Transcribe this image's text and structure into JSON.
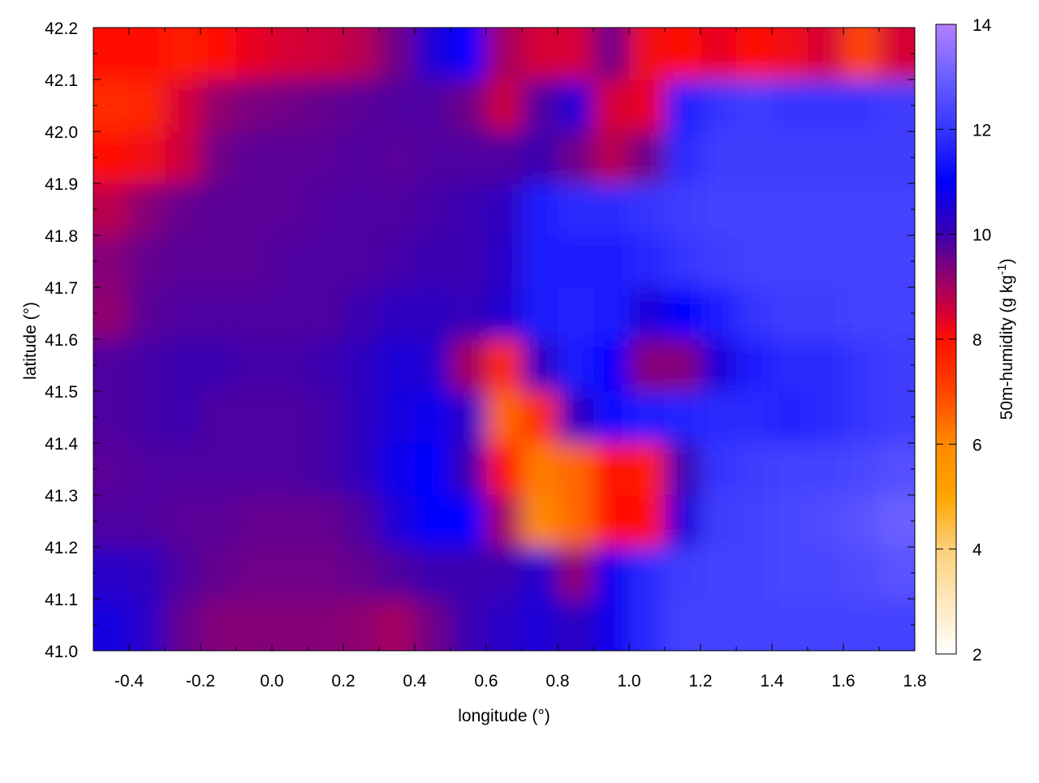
{
  "chart_data": {
    "type": "heatmap",
    "title": "",
    "xlabel": "longitude (°)",
    "ylabel": "latitude (°)",
    "colorbar_label": "50m-humidity (g kg",
    "colorbar_label_sup": "-1",
    "colorbar_label_end": ")",
    "xlim": [
      -0.5,
      1.8
    ],
    "ylim": [
      41.0,
      42.2
    ],
    "clim": [
      2,
      14
    ],
    "x_ticks": [
      "-0.4",
      "-0.2",
      "0.0",
      "0.2",
      "0.4",
      "0.6",
      "0.8",
      "1.0",
      "1.2",
      "1.4",
      "1.6",
      "1.8"
    ],
    "y_ticks": [
      "41.0",
      "41.1",
      "41.2",
      "41.3",
      "41.4",
      "41.5",
      "41.6",
      "41.7",
      "41.8",
      "41.9",
      "42.0",
      "42.1",
      "42.2"
    ],
    "c_ticks": [
      "2",
      "4",
      "6",
      "8",
      "10",
      "12",
      "14"
    ],
    "palette": [
      {
        "v": 2,
        "c": "#ffffff"
      },
      {
        "v": 4,
        "c": "#fcd07a"
      },
      {
        "v": 5,
        "c": "#ffa500"
      },
      {
        "v": 6,
        "c": "#ff8a00"
      },
      {
        "v": 7,
        "c": "#ff4400"
      },
      {
        "v": 8,
        "c": "#ff1000"
      },
      {
        "v": 8.4,
        "c": "#e0002c"
      },
      {
        "v": 9.2,
        "c": "#900070"
      },
      {
        "v": 10,
        "c": "#3a00b0"
      },
      {
        "v": 11,
        "c": "#0000ff"
      },
      {
        "v": 12,
        "c": "#3535ff"
      },
      {
        "v": 13,
        "c": "#6a60ff"
      },
      {
        "v": 14,
        "c": "#b380ff"
      }
    ],
    "grid_lon": [
      -0.45,
      -0.35,
      -0.25,
      -0.15,
      -0.05,
      0.05,
      0.15,
      0.25,
      0.35,
      0.45,
      0.55,
      0.65,
      0.75,
      0.85,
      0.95,
      1.05,
      1.15,
      1.25,
      1.35,
      1.45,
      1.55,
      1.65,
      1.75
    ],
    "grid_lat": [
      42.15,
      42.05,
      41.95,
      41.85,
      41.75,
      41.65,
      41.55,
      41.45,
      41.35,
      41.25,
      41.15,
      41.05
    ],
    "values": [
      [
        8,
        8,
        7.8,
        8,
        8.3,
        8.5,
        8.6,
        8.8,
        9.5,
        10.5,
        11,
        9,
        8.5,
        8.5,
        9.5,
        8.2,
        8,
        8.3,
        8,
        8.2,
        8.5,
        7,
        8.5
      ],
      [
        7.5,
        7.6,
        8.5,
        9.2,
        9.4,
        9.5,
        9.6,
        9.7,
        9.8,
        9.8,
        9.5,
        8.6,
        9.8,
        10.5,
        8.5,
        8.3,
        11.5,
        12,
        12.2,
        12,
        12,
        12,
        12.2
      ],
      [
        8,
        8.2,
        8.6,
        9.5,
        9.7,
        9.7,
        9.7,
        9.8,
        9.7,
        9.8,
        9.8,
        9.8,
        10,
        9.5,
        8.8,
        9.5,
        11.8,
        12.2,
        12.2,
        12.2,
        12.2,
        12.2,
        12.2
      ],
      [
        8.8,
        9.3,
        9.6,
        9.7,
        9.7,
        9.7,
        9.8,
        9.8,
        9.8,
        9.9,
        10,
        10.2,
        11.5,
        11.8,
        11.8,
        12,
        12.2,
        12.3,
        12.3,
        12.3,
        12.3,
        12.3,
        12.3
      ],
      [
        9.3,
        9.6,
        9.7,
        9.7,
        9.7,
        9.8,
        9.8,
        9.8,
        9.9,
        10,
        10,
        10.3,
        11.5,
        11.5,
        11.5,
        11.7,
        12,
        12.2,
        12.3,
        12.3,
        12.3,
        12.3,
        12.3
      ],
      [
        9.2,
        9.7,
        9.8,
        9.8,
        9.8,
        9.8,
        9.8,
        10,
        10.2,
        10.2,
        10.1,
        10.4,
        11.5,
        11.6,
        11.5,
        10.5,
        11,
        11.5,
        12,
        12.2,
        12.2,
        12.3,
        12.3
      ],
      [
        9.8,
        9.9,
        10,
        10,
        9.9,
        9.9,
        10,
        10.2,
        10.5,
        10.4,
        9,
        7.5,
        10.2,
        11.5,
        11,
        9.3,
        9.3,
        10.5,
        11.5,
        11.8,
        11.8,
        12,
        12.2
      ],
      [
        9.8,
        9.9,
        10,
        9.8,
        9.8,
        9.8,
        9.9,
        10.2,
        10.6,
        10.8,
        10.3,
        6.5,
        7.5,
        10.2,
        11.3,
        11.5,
        11.6,
        11.8,
        11.8,
        11.6,
        11.8,
        12,
        12.2
      ],
      [
        9.7,
        9.8,
        9.8,
        9.8,
        9.8,
        9.8,
        9.9,
        10.2,
        10.8,
        11,
        10,
        8,
        6.2,
        6.5,
        8,
        7.8,
        10,
        12,
        12.2,
        12.3,
        12.3,
        12.4,
        12.6
      ],
      [
        9.8,
        9.8,
        9.7,
        9.7,
        9.6,
        9.6,
        9.6,
        9.8,
        10.5,
        11,
        11,
        9,
        6,
        6.5,
        8,
        8,
        10.5,
        12.2,
        12.3,
        12.4,
        12.5,
        12.7,
        13
      ],
      [
        10.3,
        10.2,
        9.8,
        9.6,
        9.5,
        9.5,
        9.5,
        9.6,
        9.8,
        10,
        10,
        10,
        10.4,
        9.2,
        10.8,
        11.8,
        12.2,
        12.3,
        12.3,
        12.4,
        12.4,
        12.5,
        12.7
      ],
      [
        10.6,
        10.3,
        9.6,
        9.3,
        9.3,
        9.3,
        9.3,
        9.2,
        9,
        9.5,
        10,
        10.3,
        10.5,
        10.2,
        10.8,
        11.8,
        12.3,
        12.3,
        12.3,
        12.3,
        12.3,
        12.3,
        12.3
      ]
    ],
    "grid": false,
    "legend": "colorbar-right"
  }
}
